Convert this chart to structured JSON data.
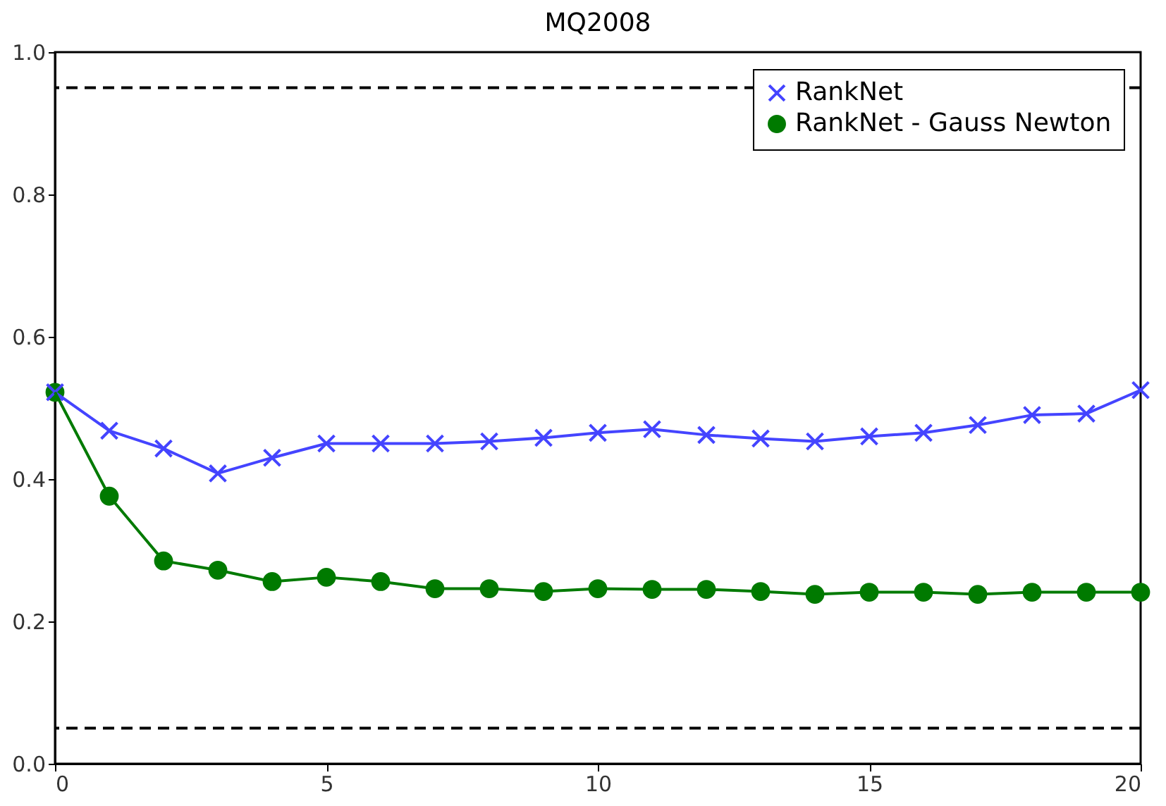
{
  "chart_data": {
    "type": "line",
    "title": "MQ2008",
    "x": [
      0,
      1,
      2,
      3,
      4,
      5,
      6,
      7,
      8,
      9,
      10,
      11,
      12,
      13,
      14,
      15,
      16,
      17,
      18,
      19,
      20
    ],
    "series": [
      {
        "name": "RankNet",
        "color": "#4444ff",
        "marker": "cross",
        "values": [
          0.522,
          0.468,
          0.443,
          0.408,
          0.43,
          0.45,
          0.45,
          0.45,
          0.453,
          0.458,
          0.465,
          0.47,
          0.462,
          0.457,
          0.453,
          0.46,
          0.465,
          0.476,
          0.49,
          0.492,
          0.525
        ]
      },
      {
        "name": "RankNet - Gauss Newton",
        "color": "#007a00",
        "marker": "circle",
        "values": [
          0.522,
          0.376,
          0.285,
          0.272,
          0.256,
          0.262,
          0.256,
          0.246,
          0.246,
          0.242,
          0.246,
          0.245,
          0.245,
          0.242,
          0.238,
          0.241,
          0.241,
          0.238,
          0.241,
          0.241,
          0.241
        ]
      }
    ],
    "xlim": [
      0,
      20
    ],
    "xticks": [
      0,
      5,
      10,
      15,
      20
    ],
    "ylim": [
      0,
      1
    ],
    "yticks": [
      {
        "value": 0,
        "label": "0.0"
      },
      0.2,
      0.4,
      0.6,
      0.8,
      {
        "value": 1,
        "label": "1.0"
      }
    ],
    "ref_lines": [
      {
        "axis": "y",
        "value": 0.95,
        "color": "#000000",
        "line_style": "dashed"
      },
      {
        "axis": "y",
        "value": 0.05,
        "color": "#000000",
        "line_style": "dashed"
      }
    ],
    "grid": false,
    "legend": "top right",
    "line_style": "solid"
  }
}
